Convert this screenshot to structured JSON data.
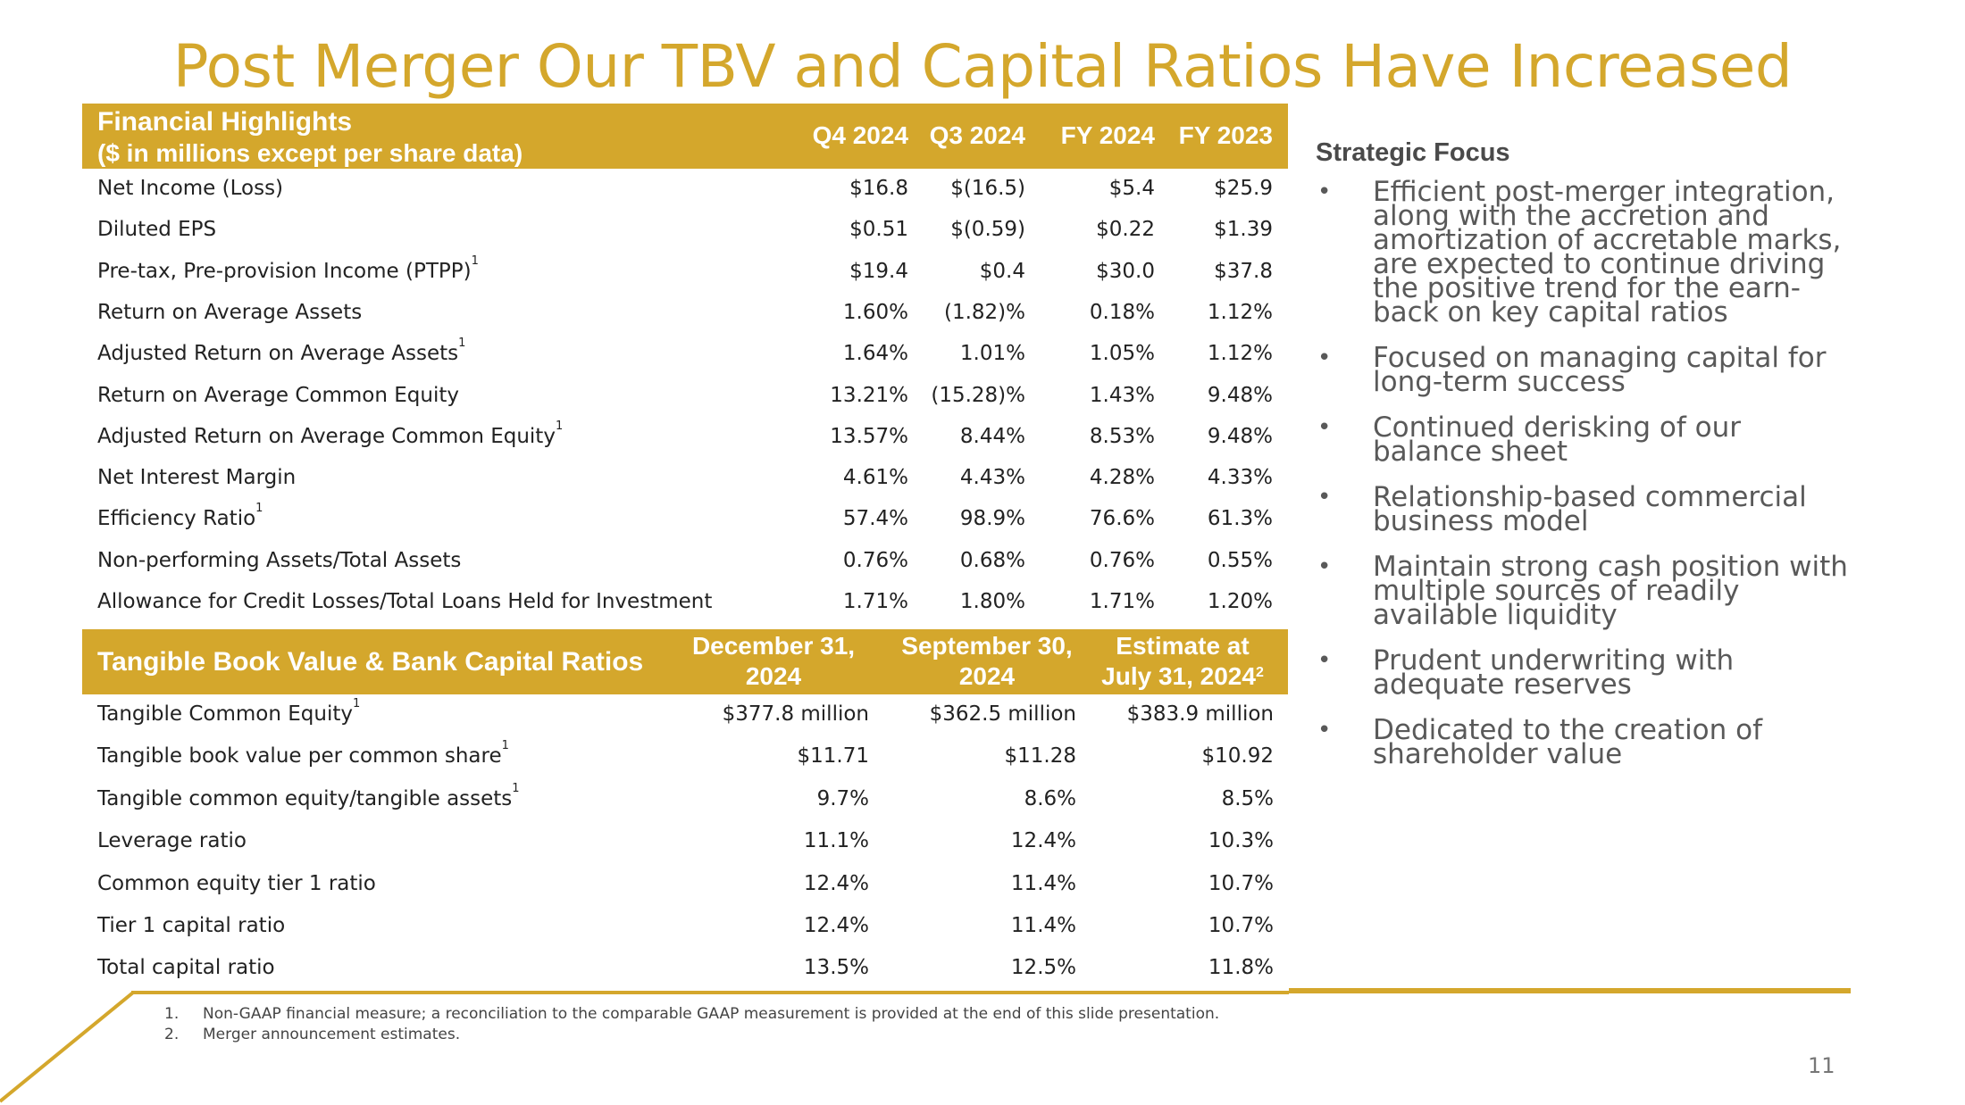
{
  "title": "Post Merger Our TBV and Capital Ratios Have Increased",
  "brand_color": "#d4a72c",
  "financial_highlights": {
    "title": "Financial Highlights",
    "subtitle": "($ in millions except per share data)",
    "columns": [
      "Q4 2024",
      "Q3 2024",
      "FY 2024",
      "FY 2023"
    ],
    "rows": [
      {
        "label": "Net Income (Loss)",
        "sup": "",
        "values": [
          "$16.8",
          "$(16.5)",
          "$5.4",
          "$25.9"
        ]
      },
      {
        "label": "Diluted EPS",
        "sup": "",
        "values": [
          "$0.51",
          "$(0.59)",
          "$0.22",
          "$1.39"
        ]
      },
      {
        "label": "Pre-tax, Pre-provision Income (PTPP)",
        "sup": "1",
        "values": [
          "$19.4",
          "$0.4",
          "$30.0",
          "$37.8"
        ]
      },
      {
        "label": "Return on Average Assets",
        "sup": "",
        "values": [
          "1.60%",
          "(1.82)%",
          "0.18%",
          "1.12%"
        ]
      },
      {
        "label": "Adjusted Return on Average Assets",
        "sup": "1",
        "values": [
          "1.64%",
          "1.01%",
          "1.05%",
          "1.12%"
        ]
      },
      {
        "label": "Return on Average Common Equity",
        "sup": "",
        "values": [
          "13.21%",
          "(15.28)%",
          "1.43%",
          "9.48%"
        ]
      },
      {
        "label": "Adjusted Return on Average Common Equity",
        "sup": "1",
        "values": [
          "13.57%",
          "8.44%",
          "8.53%",
          "9.48%"
        ]
      },
      {
        "label": "Net Interest Margin",
        "sup": "",
        "values": [
          "4.61%",
          "4.43%",
          "4.28%",
          "4.33%"
        ]
      },
      {
        "label": "Efficiency Ratio",
        "sup": "1",
        "values": [
          "57.4%",
          "98.9%",
          "76.6%",
          "61.3%"
        ]
      },
      {
        "label": "Non-performing Assets/Total Assets",
        "sup": "",
        "values": [
          "0.76%",
          "0.68%",
          "0.76%",
          "0.55%"
        ]
      },
      {
        "label": "Allowance for Credit Losses/Total Loans Held for Investment",
        "sup": "",
        "values": [
          "1.71%",
          "1.80%",
          "1.71%",
          "1.20%"
        ]
      }
    ]
  },
  "tbv": {
    "title": "Tangible Book Value & Bank Capital Ratios",
    "columns": [
      {
        "line1": "December 31,",
        "line2": "2024",
        "sup": ""
      },
      {
        "line1": "September 30,",
        "line2": "2024",
        "sup": ""
      },
      {
        "line1": "Estimate at",
        "line2": "July 31, 2024",
        "sup": "2"
      }
    ],
    "rows": [
      {
        "label": "Tangible Common Equity",
        "sup": "1",
        "values": [
          "$377.8 million",
          "$362.5 million",
          "$383.9 million"
        ]
      },
      {
        "label": "Tangible book value per common share",
        "sup": "1",
        "values": [
          "$11.71",
          "$11.28",
          "$10.92"
        ]
      },
      {
        "label": "Tangible common equity/tangible assets",
        "sup": "1",
        "values": [
          "9.7%",
          "8.6%",
          "8.5%"
        ]
      },
      {
        "label": "Leverage ratio",
        "sup": "",
        "values": [
          "11.1%",
          "12.4%",
          "10.3%"
        ]
      },
      {
        "label": "Common equity tier 1 ratio",
        "sup": "",
        "values": [
          "12.4%",
          "11.4%",
          "10.7%"
        ]
      },
      {
        "label": "Tier 1 capital ratio",
        "sup": "",
        "values": [
          "12.4%",
          "11.4%",
          "10.7%"
        ]
      },
      {
        "label": "Total capital ratio",
        "sup": "",
        "values": [
          "13.5%",
          "12.5%",
          "11.8%"
        ]
      }
    ]
  },
  "strategic_focus": {
    "title": "Strategic Focus",
    "bullets": [
      "Efficient post-merger integration, along with the accretion and amortization of accretable marks, are expected to continue driving the positive trend for the earn-back on key capital ratios",
      "Focused on managing capital for long-term success",
      "Continued derisking of our balance sheet",
      "Relationship-based commercial business model",
      "Maintain strong cash position with multiple sources of readily available liquidity",
      "Prudent underwriting with adequate reserves",
      "Dedicated to the creation of shareholder value"
    ]
  },
  "footnotes": [
    {
      "num": "1.",
      "text": "Non-GAAP financial measure; a reconciliation to the comparable GAAP measurement is provided at the end of this slide presentation."
    },
    {
      "num": "2.",
      "text": "Merger announcement estimates."
    }
  ],
  "page_number": "11"
}
